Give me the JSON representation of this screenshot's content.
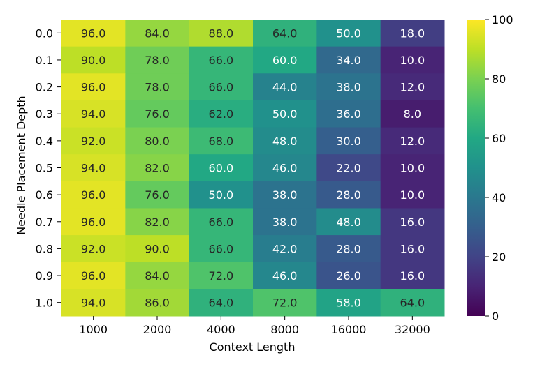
{
  "chart_data": {
    "type": "heatmap",
    "title": "",
    "xlabel": "Context Length",
    "ylabel": "Needle Placement Depth",
    "x_categories": [
      "1000",
      "2000",
      "4000",
      "8000",
      "16000",
      "32000"
    ],
    "y_categories": [
      "0.0",
      "0.1",
      "0.2",
      "0.3",
      "0.4",
      "0.5",
      "0.6",
      "0.7",
      "0.8",
      "0.9",
      "1.0"
    ],
    "values": [
      [
        96.0,
        84.0,
        88.0,
        64.0,
        50.0,
        18.0
      ],
      [
        90.0,
        78.0,
        66.0,
        60.0,
        34.0,
        10.0
      ],
      [
        96.0,
        78.0,
        66.0,
        44.0,
        38.0,
        12.0
      ],
      [
        94.0,
        76.0,
        62.0,
        50.0,
        36.0,
        8.0
      ],
      [
        92.0,
        80.0,
        68.0,
        48.0,
        30.0,
        12.0
      ],
      [
        94.0,
        82.0,
        60.0,
        46.0,
        22.0,
        10.0
      ],
      [
        96.0,
        76.0,
        50.0,
        38.0,
        28.0,
        10.0
      ],
      [
        96.0,
        82.0,
        66.0,
        38.0,
        48.0,
        16.0
      ],
      [
        92.0,
        90.0,
        66.0,
        42.0,
        28.0,
        16.0
      ],
      [
        96.0,
        84.0,
        72.0,
        46.0,
        26.0,
        16.0
      ],
      [
        94.0,
        86.0,
        64.0,
        72.0,
        58.0,
        64.0
      ]
    ],
    "cell_labels": [
      [
        "96.0",
        "84.0",
        "88.0",
        "64.0",
        "50.0",
        "18.0"
      ],
      [
        "90.0",
        "78.0",
        "66.0",
        "60.0",
        "34.0",
        "10.0"
      ],
      [
        "96.0",
        "78.0",
        "66.0",
        "44.0",
        "38.0",
        "12.0"
      ],
      [
        "94.0",
        "76.0",
        "62.0",
        "50.0",
        "36.0",
        "8.0"
      ],
      [
        "92.0",
        "80.0",
        "68.0",
        "48.0",
        "30.0",
        "12.0"
      ],
      [
        "94.0",
        "82.0",
        "60.0",
        "46.0",
        "22.0",
        "10.0"
      ],
      [
        "96.0",
        "76.0",
        "50.0",
        "38.0",
        "28.0",
        "10.0"
      ],
      [
        "96.0",
        "82.0",
        "66.0",
        "38.0",
        "48.0",
        "16.0"
      ],
      [
        "92.0",
        "90.0",
        "66.0",
        "42.0",
        "28.0",
        "16.0"
      ],
      [
        "96.0",
        "84.0",
        "72.0",
        "46.0",
        "26.0",
        "16.0"
      ],
      [
        "94.0",
        "86.0",
        "64.0",
        "72.0",
        "58.0",
        "64.0"
      ]
    ],
    "colormap": "viridis",
    "colorbar": {
      "min": 0,
      "max": 100,
      "ticks": [
        0,
        20,
        40,
        60,
        80,
        100
      ],
      "tick_labels": [
        "0",
        "20",
        "40",
        "60",
        "80",
        "100"
      ]
    },
    "grid": false,
    "legend": "colorbar-right"
  }
}
